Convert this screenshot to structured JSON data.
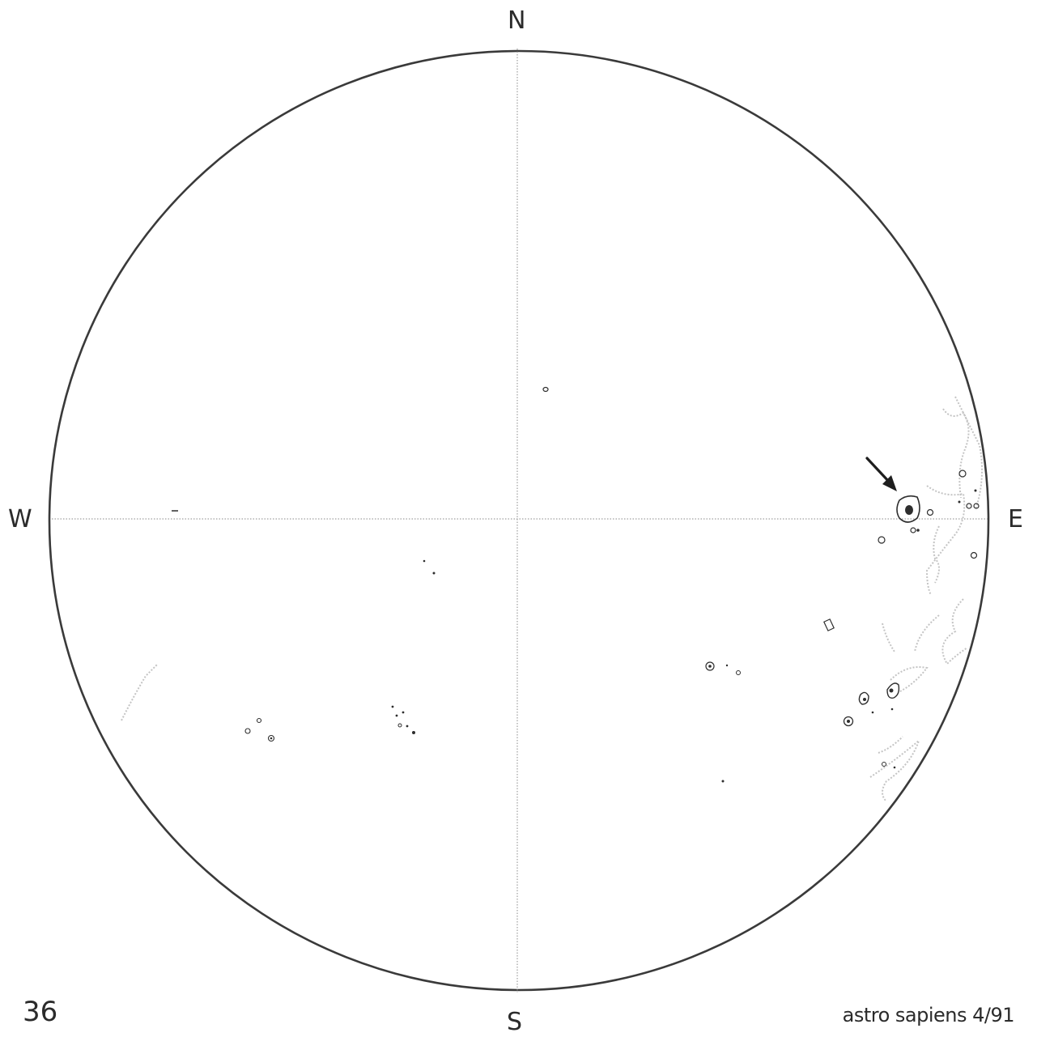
{
  "diagram": {
    "compass": {
      "north": "N",
      "south": "S",
      "west": "W",
      "east": "E"
    },
    "page_number": "36",
    "credit": "astro sapiens 4/91",
    "colors": {
      "disk_outline": "#3a3a3a",
      "axis_line": "#8a8a8a",
      "spot_ink": "#2e2e2e",
      "facula_ink": "#c4c4c4",
      "arrow": "#1e1e1e"
    }
  }
}
